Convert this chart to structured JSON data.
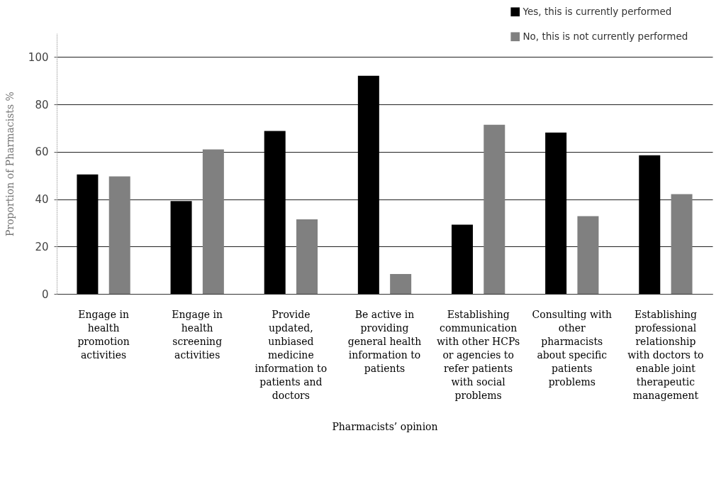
{
  "chart_data": {
    "type": "bar",
    "xlabel": "Pharmacists’ opinion",
    "ylabel": "Proportion of Pharmacists %",
    "categories": [
      "Engage in health promotion activities",
      "Engage in health screening activities",
      "Provide updated, unbiased medicine information to patients and doctors",
      "Be active in providing general health information to patients",
      "Establishing communication with other HCPs or agencies to refer patients with social problems",
      "Consulting with other pharmacists about specific patients problems",
      "Establishing professional relationship with doctors to enable joint therapeutic management"
    ],
    "series": [
      {
        "name": "Yes, this is currently performed",
        "color": "#000000",
        "values": [
          50.4,
          39.2,
          68.8,
          92.1,
          29.2,
          68.1,
          58.5
        ]
      },
      {
        "name": "No, this is not currently performed",
        "color": "#808080",
        "values": [
          49.6,
          61.0,
          31.5,
          8.4,
          71.4,
          32.8,
          42.1
        ]
      }
    ],
    "ylim": [
      0,
      110
    ],
    "yticks": [
      0,
      20,
      40,
      60,
      80,
      100
    ],
    "grid": "y",
    "legend": "top right"
  }
}
